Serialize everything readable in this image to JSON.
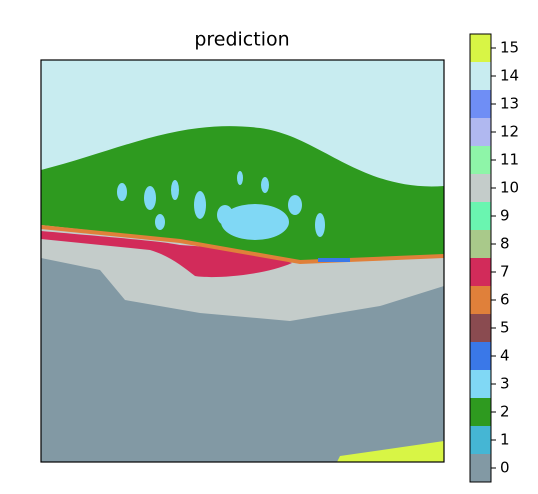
{
  "chart_data": {
    "type": "segmentation",
    "title": "prediction",
    "regions": [
      14,
      2,
      3,
      10,
      7,
      6,
      4,
      0,
      15
    ],
    "colorbar": {
      "ticks": [
        0,
        1,
        2,
        3,
        4,
        5,
        6,
        7,
        8,
        9,
        10,
        11,
        12,
        13,
        14,
        15
      ],
      "colors": [
        "#8299a4",
        "#45b6d4",
        "#2e9a1f",
        "#80d8f5",
        "#3a78e8",
        "#8a4b50",
        "#e0803a",
        "#d22b5a",
        "#a9c98a",
        "#6af5b0",
        "#c4ccca",
        "#8ef5a8",
        "#b0b8f0",
        "#6f8ef5",
        "#c8ecf0",
        "#d8f545"
      ]
    }
  }
}
